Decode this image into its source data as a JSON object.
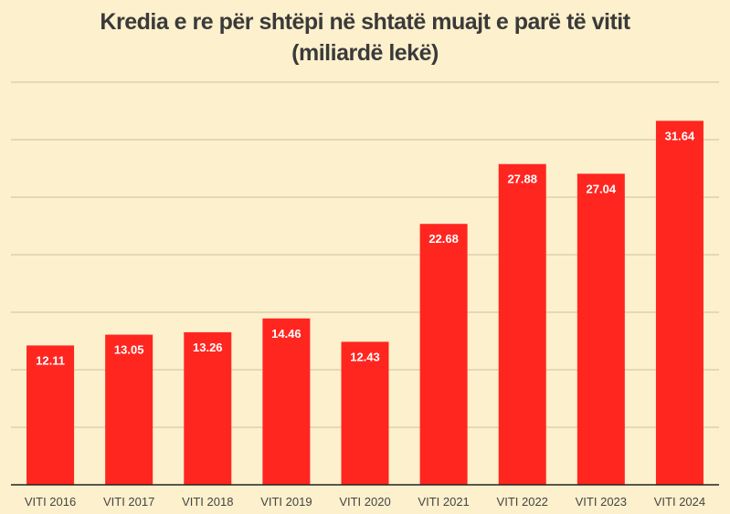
{
  "chart_data": {
    "type": "bar",
    "title": "Kredia e re për shtëpi në shtatë muajt e parë të vitit",
    "subtitle": "(miliardë lekë)",
    "categories": [
      "VITI 2016",
      "VITI 2017",
      "VITI 2018",
      "VITI 2019",
      "VITI 2020",
      "VITI 2021",
      "VITI 2022",
      "VITI 2023",
      "VITI 2024"
    ],
    "values": [
      12.11,
      13.05,
      13.26,
      14.46,
      12.43,
      22.68,
      27.88,
      27.04,
      31.64
    ],
    "value_labels": [
      "12.11",
      "13.05",
      "13.26",
      "14.46",
      "12.43",
      "22.68",
      "27.88",
      "27.04",
      "31.64"
    ],
    "xlabel": "",
    "ylabel": "",
    "ylim": [
      0,
      35
    ],
    "grid_step": 5,
    "grid": true,
    "bar_color": "#ff2620",
    "background": "#fdf0cc"
  }
}
